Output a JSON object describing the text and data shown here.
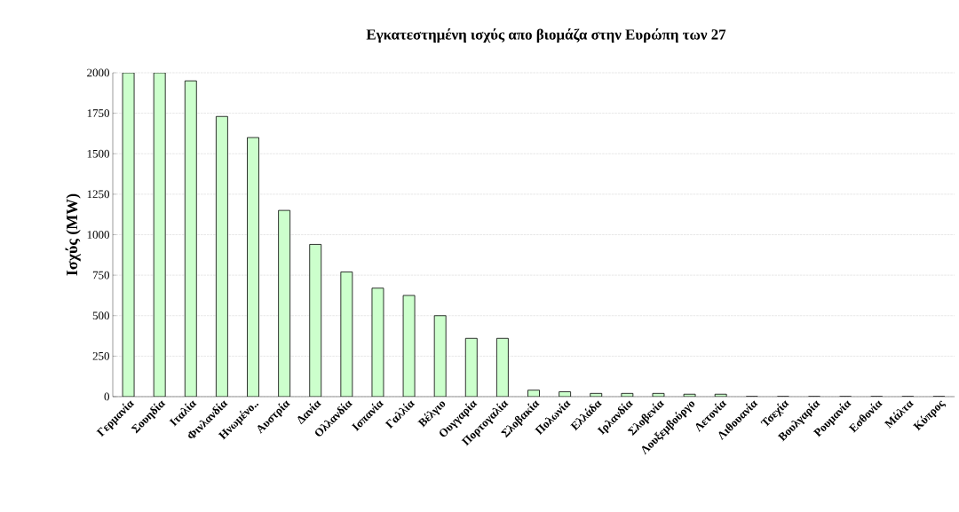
{
  "chart_data": {
    "type": "bar",
    "title": "Εγκατεστημένη ισχύς απο βιομάζα στην Ευρώπη των 27",
    "ylabel": "Ισχύς (MW)",
    "categories": [
      "Γερμανία",
      "Σουηδία",
      "Ιταλία",
      "Φινλανδία",
      "Ηνωμένο..",
      "Αυστρία",
      "Δανία",
      "Ολλανδία",
      "Ισπανία",
      "Γαλλία",
      "Βέλγιο",
      "Ουγγαρία",
      "Πορτογαλία",
      "Σλοβακία",
      "Πολωνία",
      "Ελλάδα",
      "Ιρλανδία",
      "Σλοβενία",
      "Λουξεμβούργο",
      "Λετονία",
      "Λιθουανία",
      "Τσεχία",
      "Βουλγαρία",
      "Ρουμανία",
      "Εσθονία",
      "Μάλτα",
      "Κύπρος"
    ],
    "values": [
      2000,
      2000,
      1950,
      1730,
      1600,
      1150,
      940,
      770,
      670,
      625,
      500,
      360,
      360,
      40,
      30,
      20,
      20,
      20,
      15,
      15,
      0,
      0,
      0,
      0,
      0,
      0,
      0
    ],
    "color": "#ccffcc",
    "ylim": [
      0,
      2000
    ],
    "yticks": [
      0,
      250,
      500,
      750,
      1000,
      1250,
      1500,
      1750,
      2000
    ],
    "grid": "y"
  }
}
